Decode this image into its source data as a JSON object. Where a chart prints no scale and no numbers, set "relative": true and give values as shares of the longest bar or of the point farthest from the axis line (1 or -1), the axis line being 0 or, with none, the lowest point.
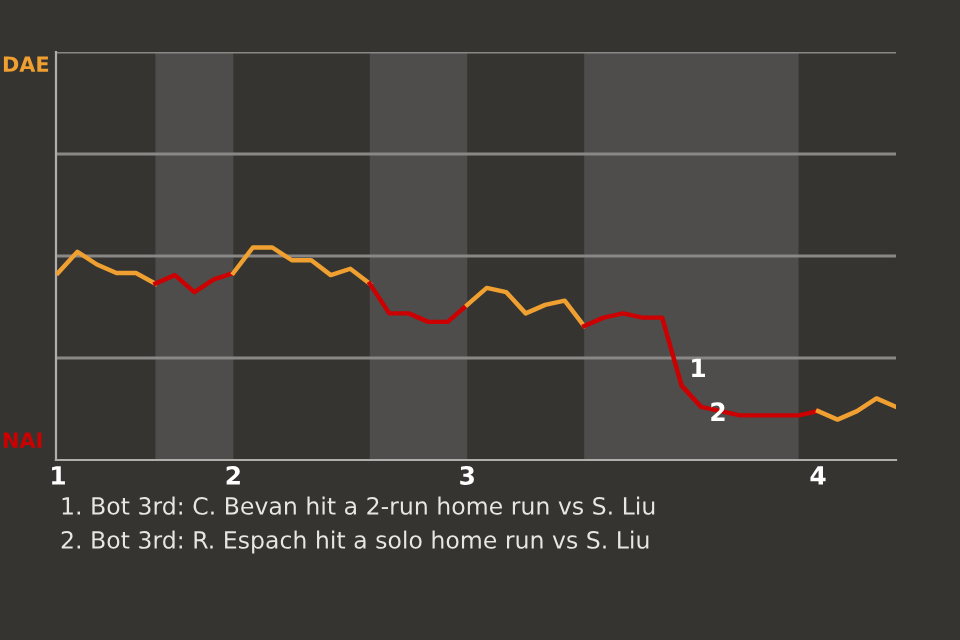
{
  "chart_data": {
    "type": "line",
    "relative": true,
    "categories": [
      "1",
      null,
      null,
      null,
      null,
      null,
      null,
      null,
      null,
      "2",
      null,
      null,
      null,
      null,
      null,
      null,
      null,
      null,
      null,
      null,
      null,
      "3",
      null,
      null,
      null,
      null,
      null,
      null,
      null,
      null,
      null,
      null,
      null,
      null,
      null,
      null,
      null,
      null,
      null,
      "4",
      null,
      null,
      null,
      null
    ],
    "marker": "none",
    "line_style": "solid",
    "ref_lines": [
      {
        "axis": "y",
        "value": 0.48,
        "color": "#8a8886"
      },
      {
        "axis": "y",
        "value": 0.96,
        "color": "#8a8886"
      },
      {
        "axis": "y",
        "value": 1.44,
        "color": "#8a8886"
      },
      {
        "axis": "y",
        "value": 1.92,
        "color": "#8a8886"
      }
    ],
    "series": [
      {
        "color": "#f0a030",
        "values": [
          0.88,
          0.98,
          0.92,
          0.88,
          0.88,
          0.83,
          null,
          null,
          null,
          null,
          null,
          null,
          null,
          null,
          null,
          null,
          null,
          null,
          null,
          null,
          null,
          null,
          null,
          null,
          null,
          null,
          null,
          null,
          null,
          null,
          null,
          null,
          null,
          null,
          null,
          null,
          null,
          null,
          null,
          null,
          null,
          null,
          null,
          null
        ]
      },
      {
        "color": "#cc0000",
        "values": [
          null,
          null,
          null,
          null,
          null,
          0.83,
          0.87,
          0.79,
          0.85,
          0.88,
          null,
          null,
          null,
          null,
          null,
          null,
          null,
          null,
          null,
          null,
          null,
          null,
          null,
          null,
          null,
          null,
          null,
          null,
          null,
          null,
          null,
          null,
          null,
          null,
          null,
          null,
          null,
          null,
          null,
          null,
          null,
          null,
          null,
          null
        ]
      },
      {
        "color": "#f0a030",
        "values": [
          null,
          null,
          null,
          null,
          null,
          null,
          null,
          null,
          null,
          0.88,
          1,
          1,
          0.94,
          0.94,
          0.87,
          0.9,
          0.83,
          null,
          null,
          null,
          null,
          null,
          null,
          null,
          null,
          null,
          null,
          null,
          null,
          null,
          null,
          null,
          null,
          null,
          null,
          null,
          null,
          null,
          null,
          null,
          null,
          null,
          null,
          null
        ]
      },
      {
        "color": "#cc0000",
        "values": [
          null,
          null,
          null,
          null,
          null,
          null,
          null,
          null,
          null,
          null,
          null,
          null,
          null,
          null,
          null,
          null,
          0.83,
          0.69,
          0.69,
          0.65,
          0.65,
          0.73,
          null,
          null,
          null,
          null,
          null,
          null,
          null,
          null,
          null,
          null,
          null,
          null,
          null,
          null,
          null,
          null,
          null,
          null,
          null,
          null,
          null,
          null
        ]
      },
      {
        "color": "#f0a030",
        "values": [
          null,
          null,
          null,
          null,
          null,
          null,
          null,
          null,
          null,
          null,
          null,
          null,
          null,
          null,
          null,
          null,
          null,
          null,
          null,
          null,
          null,
          0.73,
          0.81,
          0.79,
          0.69,
          0.73,
          0.75,
          0.63,
          null,
          null,
          null,
          null,
          null,
          null,
          null,
          null,
          null,
          null,
          null,
          null,
          null,
          null,
          null,
          null
        ]
      },
      {
        "color": "#cc0000",
        "values": [
          null,
          null,
          null,
          null,
          null,
          null,
          null,
          null,
          null,
          null,
          null,
          null,
          null,
          null,
          null,
          null,
          null,
          null,
          null,
          null,
          null,
          null,
          null,
          null,
          null,
          null,
          null,
          0.63,
          0.67,
          0.69,
          0.67,
          0.67,
          0.35,
          0.25,
          0.23,
          0.21,
          0.21,
          0.21,
          0.21,
          0.23,
          null,
          null,
          null,
          null
        ]
      },
      {
        "color": "#f0a030",
        "values": [
          null,
          null,
          null,
          null,
          null,
          null,
          null,
          null,
          null,
          null,
          null,
          null,
          null,
          null,
          null,
          null,
          null,
          null,
          null,
          null,
          null,
          null,
          null,
          null,
          null,
          null,
          null,
          null,
          null,
          null,
          null,
          null,
          null,
          null,
          null,
          null,
          null,
          null,
          null,
          0.23,
          0.19,
          0.23,
          0.29,
          0.25
        ]
      }
    ],
    "annotations": [
      "DAE",
      "NAI",
      "1",
      "2",
      "1. Bot 3rd: C. Bevan hit a 2-run home run vs S. Liu",
      "2. Bot 3rd: R. Espach hit a solo home run vs S. Liu"
    ]
  }
}
